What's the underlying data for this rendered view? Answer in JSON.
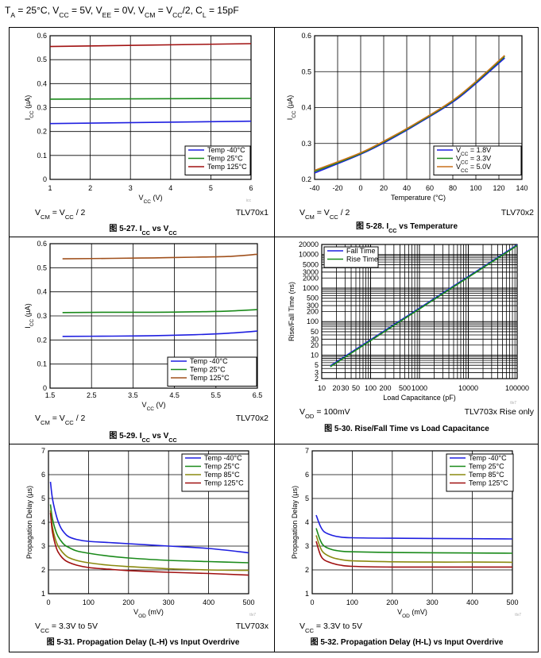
{
  "header": {
    "conditions": "T_A = 25°C, V_CC = 5V, V_EE = 0V, V_CM = V_CC/2, C_L = 15pF"
  },
  "chart_data": [
    {
      "id": "5-27",
      "type": "line",
      "title": "图 5-27. I_CC vs V_CC",
      "xlabel": "V_CC (V)",
      "ylabel": "I_CC (µA)",
      "xlim": [
        1,
        6
      ],
      "ylim": [
        0,
        0.6
      ],
      "xticks": [
        1,
        2,
        3,
        4,
        5,
        6
      ],
      "yticks": [
        0,
        0.1,
        0.2,
        0.3,
        0.4,
        0.5,
        0.6
      ],
      "ytick_labels": [
        "0",
        "0.1",
        "0.2",
        "0.3",
        "0.4",
        "0.5",
        "0.6"
      ],
      "grid": true,
      "legend_position": "bottom-right",
      "footer_left": "V_CM = V_CC / 2",
      "footer_right": "TLV70x1",
      "watermark": "icc",
      "series": [
        {
          "name": "Temp -40°C",
          "color": "#1f1fe0",
          "x": [
            1,
            6
          ],
          "y": [
            0.233,
            0.243
          ]
        },
        {
          "name": "Temp 25°C",
          "color": "#1a8a1a",
          "x": [
            1,
            6
          ],
          "y": [
            0.335,
            0.338
          ]
        },
        {
          "name": "Temp 125°C",
          "color": "#a01010",
          "x": [
            1,
            6
          ],
          "y": [
            0.555,
            0.567
          ]
        }
      ]
    },
    {
      "id": "5-28",
      "type": "line",
      "title": "图 5-28. I_CC vs Temperature",
      "xlabel": "Temperature (°C)",
      "ylabel": "I_CC (µA)",
      "xlim": [
        -40,
        140
      ],
      "ylim": [
        0.2,
        0.6
      ],
      "xticks": [
        -40,
        -20,
        0,
        20,
        40,
        60,
        80,
        100,
        120,
        140
      ],
      "yticks": [
        0.2,
        0.3,
        0.4,
        0.5,
        0.6
      ],
      "ytick_labels": [
        "0.2",
        "0.3",
        "0.4",
        "0.5",
        "0.6"
      ],
      "grid": true,
      "legend_position": "bottom-right",
      "footer_left": "V_CM = V_CC / 2",
      "footer_right": "TLV70x2",
      "series": [
        {
          "name": "V_CC = 1.8V",
          "color": "#1f1fe0",
          "x": [
            -40,
            0,
            25,
            50,
            85,
            125
          ],
          "y": [
            0.218,
            0.27,
            0.31,
            0.356,
            0.427,
            0.538
          ]
        },
        {
          "name": "V_CC = 3.3V",
          "color": "#1a8a1a",
          "x": [
            -40,
            0,
            25,
            50,
            85,
            125
          ],
          "y": [
            0.222,
            0.272,
            0.313,
            0.358,
            0.43,
            0.542
          ]
        },
        {
          "name": "V_CC = 5.0V",
          "color": "#c8701c",
          "x": [
            -40,
            0,
            25,
            50,
            85,
            125
          ],
          "y": [
            0.225,
            0.274,
            0.315,
            0.36,
            0.432,
            0.545
          ]
        }
      ]
    },
    {
      "id": "5-29",
      "type": "line",
      "title": "图 5-29. I_CC vs V_CC",
      "xlabel": "V_CC (V)",
      "ylabel": "I_CC (µA)",
      "xlim": [
        1.5,
        6.5
      ],
      "ylim": [
        0,
        0.6
      ],
      "xticks": [
        1.5,
        2.5,
        3.5,
        4.5,
        5.5,
        6.5
      ],
      "yticks": [
        0,
        0.1,
        0.2,
        0.3,
        0.4,
        0.5,
        0.6
      ],
      "ytick_labels": [
        "0",
        "0.1",
        "0.2",
        "0.3",
        "0.4",
        "0.5",
        "0.6"
      ],
      "grid": true,
      "legend_position": "bottom-right",
      "footer_left": "V_CM = V_CC / 2",
      "footer_right": "TLV70x2",
      "series": [
        {
          "name": "Temp -40°C",
          "color": "#1f1fe0",
          "x": [
            1.8,
            3,
            4,
            5,
            5.8,
            6.5
          ],
          "y": [
            0.215,
            0.216,
            0.218,
            0.222,
            0.228,
            0.237
          ]
        },
        {
          "name": "Temp 25°C",
          "color": "#1a8a1a",
          "x": [
            1.8,
            3,
            4,
            5,
            5.8,
            6.5
          ],
          "y": [
            0.314,
            0.315,
            0.315,
            0.317,
            0.32,
            0.326
          ]
        },
        {
          "name": "Temp 125°C",
          "color": "#a0501c",
          "x": [
            1.8,
            3,
            4,
            5,
            5.8,
            6.5
          ],
          "y": [
            0.537,
            0.539,
            0.541,
            0.544,
            0.547,
            0.556
          ]
        }
      ]
    },
    {
      "id": "5-30",
      "type": "line",
      "title": "图 5-30. Rise/Fall Time vs Load Capacitance",
      "xlabel": "Load Capacitance (pF)",
      "ylabel": "Rise/Fall Time (ns)",
      "xscale": "log",
      "yscale": "log",
      "xlim": [
        10,
        100000
      ],
      "ylim": [
        2,
        20000
      ],
      "xticks": [
        10,
        20,
        30,
        50,
        100,
        200,
        500,
        1000,
        10000,
        100000
      ],
      "xtick_labels": [
        "10",
        "20",
        "30",
        "50",
        "100",
        "200",
        "500",
        "1000",
        "10000",
        "100000"
      ],
      "yticks": [
        2,
        3,
        5,
        10,
        20,
        30,
        50,
        100,
        200,
        300,
        500,
        1000,
        2000,
        3000,
        5000,
        10000,
        20000
      ],
      "ytick_labels": [
        "2",
        "3",
        "5",
        "10",
        "20",
        "30",
        "50",
        "100",
        "200",
        "300",
        "500",
        "1000",
        "2000",
        "3000",
        "5000",
        "10000",
        "20000"
      ],
      "grid": true,
      "legend_position": "top-left",
      "footer_left": "V_OD = 100mV",
      "footer_right": "TLV703x Rise only",
      "watermark": "tlv7",
      "series": [
        {
          "name": "Fall Time",
          "color": "#1f1fe0",
          "x": [
            15,
            100000
          ],
          "y": [
            4.8,
            19500
          ]
        },
        {
          "name": "Rise Time",
          "color": "#1a8a1a",
          "x": [
            15,
            100000
          ],
          "y": [
            4.5,
            18500
          ]
        }
      ]
    },
    {
      "id": "5-31",
      "type": "line",
      "title": "图 5-31. Propagation Delay (L-H) vs Input Overdrive",
      "xlabel": "V_OD (mV)",
      "ylabel": "Propagation Delay (µs)",
      "xlim": [
        0,
        500
      ],
      "ylim": [
        1,
        7
      ],
      "xticks": [
        0,
        100,
        200,
        300,
        400,
        500
      ],
      "yticks": [
        1,
        2,
        3,
        4,
        5,
        6,
        7
      ],
      "ytick_labels": [
        "1",
        "2",
        "3",
        "4",
        "5",
        "6",
        "7"
      ],
      "grid": true,
      "legend_position": "top-right",
      "footer_left": "V_CC = 3.3V to 5V",
      "footer_right": "TLV703x",
      "watermark": "tlv7",
      "series": [
        {
          "name": "Temp -40°C",
          "color": "#1f1fe0",
          "x": [
            5,
            10,
            20,
            30,
            40,
            50,
            70,
            100,
            150,
            200,
            300,
            400,
            500
          ],
          "y": [
            5.7,
            5.0,
            4.25,
            3.8,
            3.55,
            3.4,
            3.28,
            3.2,
            3.15,
            3.1,
            3.0,
            2.9,
            2.72
          ]
        },
        {
          "name": "Temp 25°C",
          "color": "#1a8a1a",
          "x": [
            5,
            10,
            20,
            30,
            40,
            50,
            70,
            100,
            150,
            200,
            300,
            400,
            500
          ],
          "y": [
            4.75,
            4.15,
            3.55,
            3.25,
            3.05,
            2.95,
            2.8,
            2.7,
            2.58,
            2.5,
            2.4,
            2.35,
            2.3
          ]
        },
        {
          "name": "Temp 85°C",
          "color": "#8a8a10",
          "x": [
            5,
            10,
            20,
            30,
            40,
            50,
            70,
            100,
            150,
            200,
            300,
            400,
            500
          ],
          "y": [
            4.5,
            3.8,
            3.15,
            2.85,
            2.65,
            2.52,
            2.4,
            2.3,
            2.2,
            2.14,
            2.05,
            2.0,
            1.98
          ]
        },
        {
          "name": "Temp 125°C",
          "color": "#a01010",
          "x": [
            5,
            10,
            20,
            30,
            40,
            50,
            70,
            100,
            150,
            200,
            300,
            400,
            500
          ],
          "y": [
            4.4,
            3.6,
            2.9,
            2.6,
            2.42,
            2.32,
            2.2,
            2.1,
            2.03,
            1.97,
            1.9,
            1.85,
            1.78
          ]
        }
      ]
    },
    {
      "id": "5-32",
      "type": "line",
      "title": "图 5-32. Propagation Delay (H-L) vs Input Overdrive",
      "xlabel": "V_OD (mV)",
      "ylabel": "Propagation Delay (µs)",
      "xlim": [
        0,
        500
      ],
      "ylim": [
        1,
        7
      ],
      "xticks": [
        0,
        100,
        200,
        300,
        400,
        500
      ],
      "yticks": [
        1,
        2,
        3,
        4,
        5,
        6,
        7
      ],
      "ytick_labels": [
        "1",
        "2",
        "3",
        "4",
        "5",
        "6",
        "7"
      ],
      "grid": true,
      "legend_position": "top-right",
      "footer_left": "V_CC = 3.3V to 5V",
      "footer_right": "",
      "watermark": "tlv7",
      "series": [
        {
          "name": "Temp -40°C",
          "color": "#1f1fe0",
          "x": [
            10,
            20,
            30,
            50,
            70,
            100,
            200,
            300,
            400,
            500
          ],
          "y": [
            4.3,
            3.85,
            3.6,
            3.45,
            3.38,
            3.35,
            3.33,
            3.32,
            3.31,
            3.3
          ]
        },
        {
          "name": "Temp 25°C",
          "color": "#1a8a1a",
          "x": [
            10,
            20,
            30,
            50,
            70,
            100,
            200,
            300,
            400,
            500
          ],
          "y": [
            3.75,
            3.25,
            3.0,
            2.85,
            2.79,
            2.76,
            2.73,
            2.72,
            2.71,
            2.7
          ]
        },
        {
          "name": "Temp 85°C",
          "color": "#8a8a10",
          "x": [
            10,
            20,
            30,
            50,
            70,
            100,
            200,
            300,
            400,
            500
          ],
          "y": [
            3.45,
            2.95,
            2.7,
            2.52,
            2.44,
            2.38,
            2.34,
            2.33,
            2.33,
            2.32
          ]
        },
        {
          "name": "Temp 125°C",
          "color": "#a01010",
          "x": [
            10,
            20,
            30,
            50,
            70,
            100,
            200,
            300,
            400,
            500
          ],
          "y": [
            3.2,
            2.65,
            2.42,
            2.28,
            2.2,
            2.15,
            2.12,
            2.12,
            2.12,
            2.12
          ]
        }
      ]
    }
  ]
}
